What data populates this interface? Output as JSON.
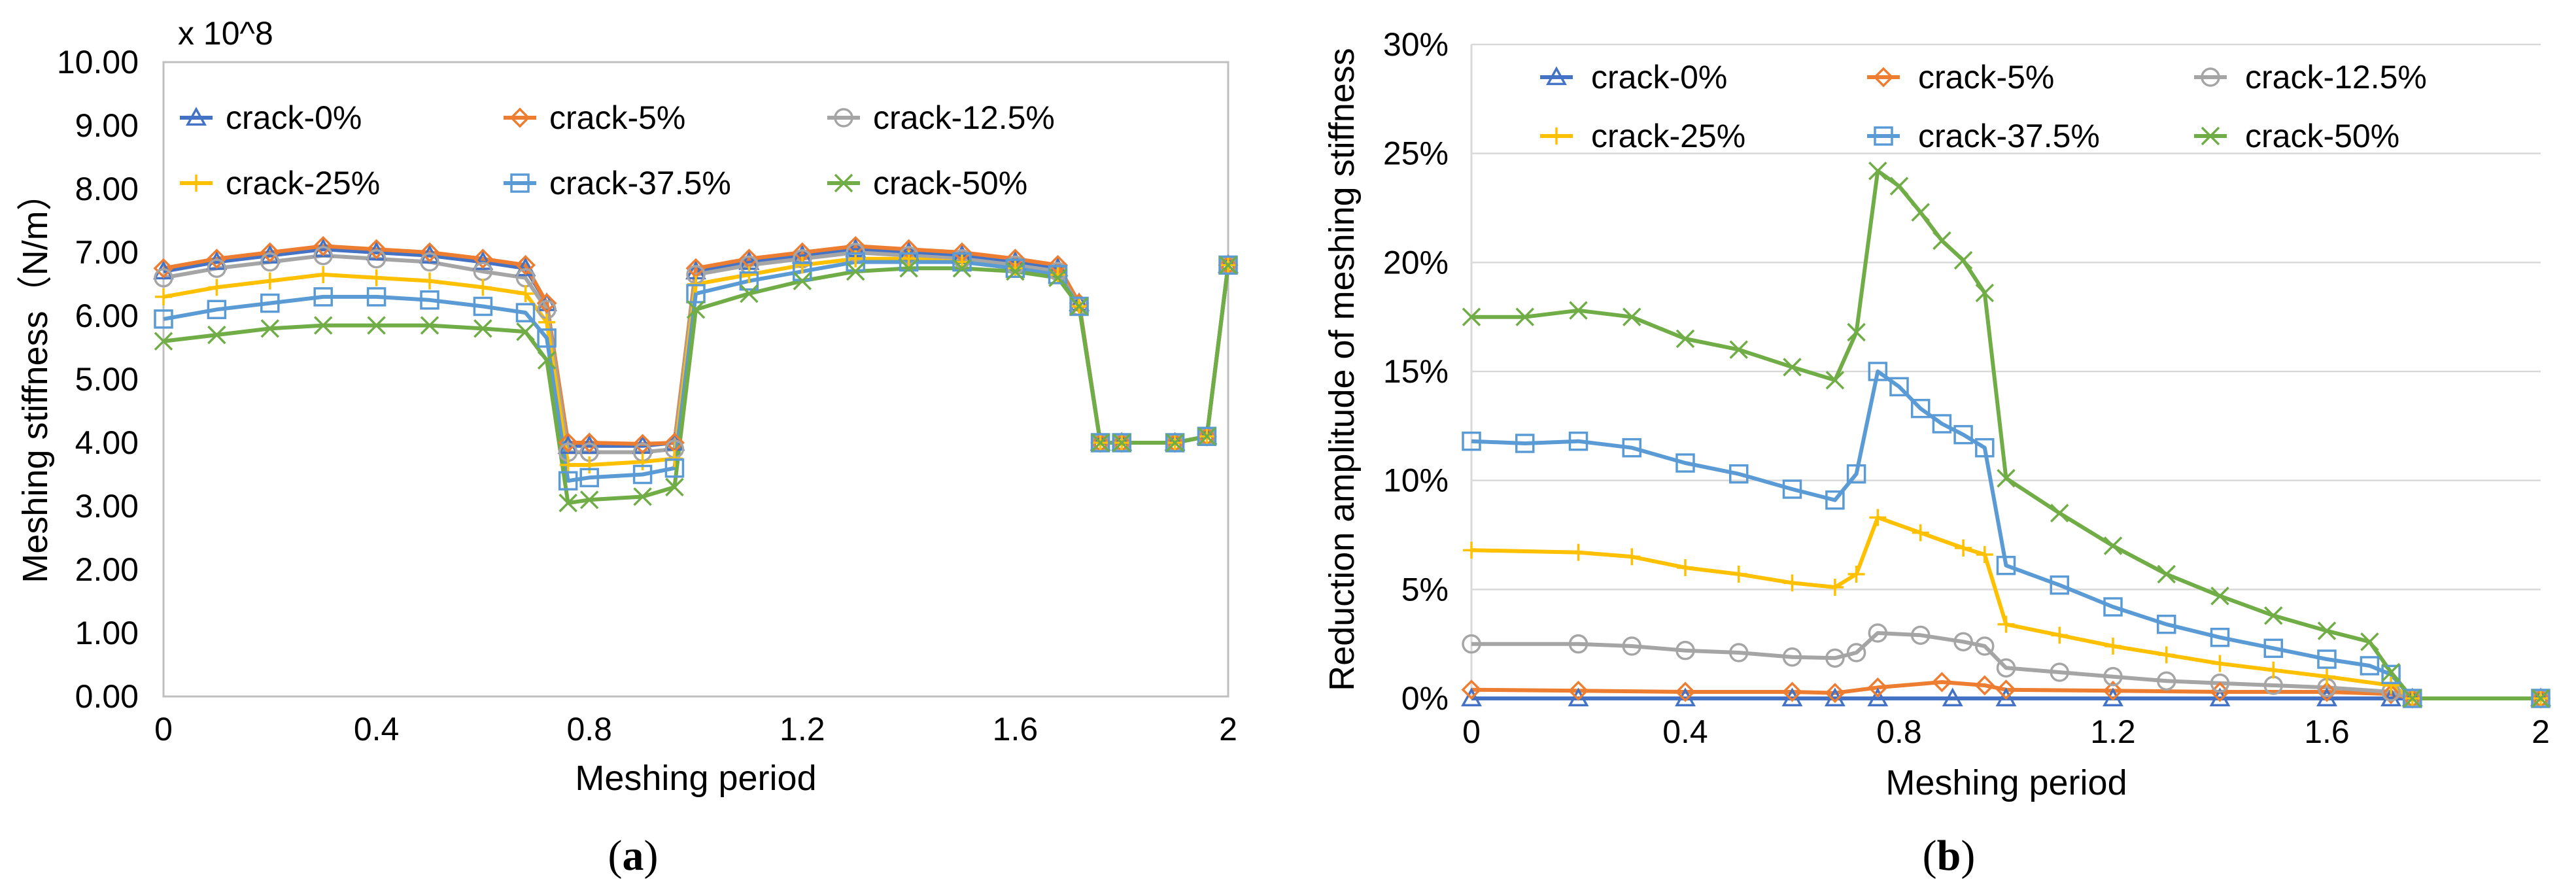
{
  "chart_data": [
    {
      "type": "line",
      "panel_label": "a",
      "multiplier_label": "x 10^8",
      "xlabel": "Meshing period",
      "ylabel": "Meshing stiffness（N/m）",
      "xlim": [
        0,
        2
      ],
      "ylim": [
        0,
        10
      ],
      "x_ticks": [
        0,
        0.4,
        0.8,
        1.2,
        1.6,
        2
      ],
      "x_tick_labels": [
        "0",
        "0.4",
        "0.8",
        "1.2",
        "1.6",
        "2"
      ],
      "y_ticks": [
        0,
        1,
        2,
        3,
        4,
        5,
        6,
        7,
        8,
        9,
        10
      ],
      "y_tick_labels": [
        "0.00",
        "1.00",
        "2.00",
        "3.00",
        "4.00",
        "5.00",
        "6.00",
        "7.00",
        "8.00",
        "9.00",
        "10.00"
      ],
      "legend_position": "top",
      "series": [
        {
          "name": "crack-0%",
          "color": "#4472C4",
          "marker": "triangle",
          "x": [
            0,
            0.1,
            0.2,
            0.3,
            0.4,
            0.5,
            0.6,
            0.68,
            0.72,
            0.76,
            0.8,
            0.9,
            0.96,
            1.0,
            1.1,
            1.2,
            1.3,
            1.4,
            1.5,
            1.6,
            1.68,
            1.72,
            1.76,
            1.8,
            1.9,
            1.96,
            2.0
          ],
          "values": [
            6.7,
            6.85,
            6.95,
            7.05,
            7.0,
            6.95,
            6.85,
            6.75,
            6.2,
            3.95,
            3.95,
            3.95,
            4.0,
            6.7,
            6.85,
            6.95,
            7.05,
            7.0,
            6.95,
            6.85,
            6.75,
            6.2,
            4.0,
            4.0,
            4.0,
            4.1,
            6.8
          ]
        },
        {
          "name": "crack-5%",
          "color": "#ED7D31",
          "marker": "diamond",
          "x": [
            0,
            0.1,
            0.2,
            0.3,
            0.4,
            0.5,
            0.6,
            0.68,
            0.72,
            0.76,
            0.8,
            0.9,
            0.96,
            1.0,
            1.1,
            1.2,
            1.3,
            1.4,
            1.5,
            1.6,
            1.68,
            1.72,
            1.76,
            1.8,
            1.9,
            1.96,
            2.0
          ],
          "values": [
            6.75,
            6.9,
            7.0,
            7.1,
            7.05,
            7.0,
            6.9,
            6.8,
            6.2,
            4.0,
            4.0,
            3.98,
            4.0,
            6.75,
            6.9,
            7.0,
            7.1,
            7.05,
            7.0,
            6.9,
            6.8,
            6.2,
            4.0,
            4.0,
            4.0,
            4.1,
            6.8
          ]
        },
        {
          "name": "crack-12.5%",
          "color": "#A5A5A5",
          "marker": "circle",
          "x": [
            0,
            0.1,
            0.2,
            0.3,
            0.4,
            0.5,
            0.6,
            0.68,
            0.72,
            0.76,
            0.8,
            0.9,
            0.96,
            1.0,
            1.1,
            1.2,
            1.3,
            1.4,
            1.5,
            1.6,
            1.68,
            1.72,
            1.76,
            1.8,
            1.9,
            1.96,
            2.0
          ],
          "values": [
            6.6,
            6.75,
            6.85,
            6.95,
            6.9,
            6.85,
            6.7,
            6.6,
            6.1,
            3.85,
            3.85,
            3.85,
            3.9,
            6.65,
            6.8,
            6.9,
            7.0,
            6.95,
            6.9,
            6.8,
            6.7,
            6.15,
            4.0,
            4.0,
            4.0,
            4.1,
            6.8
          ]
        },
        {
          "name": "crack-25%",
          "color": "#FFC000",
          "marker": "plus",
          "x": [
            0,
            0.1,
            0.2,
            0.3,
            0.4,
            0.5,
            0.6,
            0.68,
            0.72,
            0.76,
            0.8,
            0.9,
            0.96,
            1.0,
            1.1,
            1.2,
            1.3,
            1.4,
            1.5,
            1.6,
            1.68,
            1.72,
            1.76,
            1.8,
            1.9,
            1.96,
            2.0
          ],
          "values": [
            6.3,
            6.45,
            6.55,
            6.65,
            6.6,
            6.55,
            6.45,
            6.35,
            5.9,
            3.65,
            3.65,
            3.7,
            3.75,
            6.5,
            6.65,
            6.8,
            6.9,
            6.9,
            6.85,
            6.75,
            6.65,
            6.15,
            4.0,
            4.0,
            4.0,
            4.1,
            6.8
          ]
        },
        {
          "name": "crack-37.5%",
          "color": "#5B9BD5",
          "marker": "square",
          "x": [
            0,
            0.1,
            0.2,
            0.3,
            0.4,
            0.5,
            0.6,
            0.68,
            0.72,
            0.76,
            0.8,
            0.9,
            0.96,
            1.0,
            1.1,
            1.2,
            1.3,
            1.4,
            1.5,
            1.6,
            1.68,
            1.72,
            1.76,
            1.8,
            1.9,
            1.96,
            2.0
          ],
          "values": [
            5.95,
            6.1,
            6.2,
            6.3,
            6.3,
            6.25,
            6.15,
            6.05,
            5.65,
            3.4,
            3.45,
            3.5,
            3.6,
            6.35,
            6.55,
            6.7,
            6.85,
            6.85,
            6.85,
            6.75,
            6.65,
            6.15,
            4.0,
            4.0,
            4.0,
            4.1,
            6.8
          ]
        },
        {
          "name": "crack-50%",
          "color": "#70AD47",
          "marker": "x",
          "x": [
            0,
            0.1,
            0.2,
            0.3,
            0.4,
            0.5,
            0.6,
            0.68,
            0.72,
            0.76,
            0.8,
            0.9,
            0.96,
            1.0,
            1.1,
            1.2,
            1.3,
            1.4,
            1.5,
            1.6,
            1.68,
            1.72,
            1.76,
            1.8,
            1.9,
            1.96,
            2.0
          ],
          "values": [
            5.6,
            5.7,
            5.8,
            5.85,
            5.85,
            5.85,
            5.8,
            5.75,
            5.3,
            3.05,
            3.1,
            3.15,
            3.3,
            6.1,
            6.35,
            6.55,
            6.7,
            6.75,
            6.75,
            6.7,
            6.6,
            6.15,
            4.0,
            4.0,
            4.0,
            4.1,
            6.8
          ]
        }
      ]
    },
    {
      "type": "line",
      "panel_label": "b",
      "xlabel": "Meshing period",
      "ylabel": "Reduction amplitude of meshing stiffness",
      "xlim": [
        0,
        2
      ],
      "ylim": [
        0,
        30
      ],
      "x_ticks": [
        0,
        0.4,
        0.8,
        1.2,
        1.6,
        2
      ],
      "x_tick_labels": [
        "0",
        "0.4",
        "0.8",
        "1.2",
        "1.6",
        "2"
      ],
      "y_ticks": [
        0,
        5,
        10,
        15,
        20,
        25,
        30
      ],
      "y_tick_labels": [
        "0%",
        "5%",
        "10%",
        "15%",
        "20%",
        "25%",
        "30%"
      ],
      "legend_position": "top",
      "series": [
        {
          "name": "crack-0%",
          "color": "#4472C4",
          "marker": "triangle",
          "x": [
            0,
            0.2,
            0.4,
            0.6,
            0.68,
            0.76,
            0.9,
            1.0,
            1.2,
            1.4,
            1.6,
            1.72,
            1.76,
            2.0
          ],
          "values": [
            0,
            0,
            0,
            0,
            0,
            0,
            0,
            0,
            0,
            0,
            0,
            0,
            0,
            0
          ]
        },
        {
          "name": "crack-5%",
          "color": "#ED7D31",
          "marker": "diamond",
          "x": [
            0,
            0.2,
            0.4,
            0.6,
            0.68,
            0.76,
            0.88,
            0.96,
            1.0,
            1.2,
            1.4,
            1.6,
            1.72,
            1.76,
            2.0
          ],
          "values": [
            0.4,
            0.35,
            0.3,
            0.3,
            0.25,
            0.5,
            0.75,
            0.6,
            0.4,
            0.35,
            0.3,
            0.3,
            0.2,
            0,
            0
          ]
        },
        {
          "name": "crack-12.5%",
          "color": "#A5A5A5",
          "marker": "circle",
          "x": [
            0,
            0.2,
            0.3,
            0.4,
            0.5,
            0.6,
            0.68,
            0.72,
            0.76,
            0.84,
            0.92,
            0.96,
            1.0,
            1.1,
            1.2,
            1.3,
            1.4,
            1.5,
            1.6,
            1.72,
            1.76,
            2.0
          ],
          "values": [
            2.5,
            2.5,
            2.4,
            2.2,
            2.1,
            1.9,
            1.85,
            2.1,
            3.0,
            2.9,
            2.6,
            2.4,
            1.4,
            1.2,
            1.0,
            0.8,
            0.7,
            0.6,
            0.5,
            0.3,
            0,
            0
          ]
        },
        {
          "name": "crack-25%",
          "color": "#FFC000",
          "marker": "plus",
          "x": [
            0,
            0.2,
            0.3,
            0.4,
            0.5,
            0.6,
            0.68,
            0.72,
            0.76,
            0.84,
            0.92,
            0.96,
            1.0,
            1.1,
            1.2,
            1.3,
            1.4,
            1.5,
            1.6,
            1.72,
            1.76,
            2.0
          ],
          "values": [
            6.8,
            6.7,
            6.5,
            6.0,
            5.7,
            5.3,
            5.1,
            5.7,
            8.3,
            7.6,
            6.9,
            6.6,
            3.4,
            2.9,
            2.4,
            2.0,
            1.6,
            1.3,
            1.0,
            0.6,
            0,
            0
          ]
        },
        {
          "name": "crack-37.5%",
          "color": "#5B9BD5",
          "marker": "square",
          "x": [
            0,
            0.1,
            0.2,
            0.3,
            0.4,
            0.5,
            0.6,
            0.68,
            0.72,
            0.76,
            0.8,
            0.84,
            0.88,
            0.92,
            0.96,
            1.0,
            1.1,
            1.2,
            1.3,
            1.4,
            1.5,
            1.6,
            1.68,
            1.72,
            1.76,
            2.0
          ],
          "values": [
            11.8,
            11.7,
            11.8,
            11.5,
            10.8,
            10.3,
            9.6,
            9.1,
            10.3,
            15.0,
            14.3,
            13.3,
            12.6,
            12.1,
            11.5,
            6.1,
            5.2,
            4.2,
            3.4,
            2.8,
            2.3,
            1.8,
            1.5,
            1.1,
            0,
            0
          ]
        },
        {
          "name": "crack-50%",
          "color": "#70AD47",
          "marker": "x",
          "x": [
            0,
            0.1,
            0.2,
            0.3,
            0.4,
            0.5,
            0.6,
            0.68,
            0.72,
            0.76,
            0.8,
            0.84,
            0.88,
            0.92,
            0.96,
            1.0,
            1.1,
            1.2,
            1.3,
            1.4,
            1.5,
            1.6,
            1.68,
            1.72,
            1.76,
            2.0
          ],
          "values": [
            17.5,
            17.5,
            17.8,
            17.5,
            16.5,
            16.0,
            15.2,
            14.6,
            16.8,
            24.2,
            23.5,
            22.3,
            21.0,
            20.1,
            18.6,
            10.1,
            8.5,
            7.0,
            5.7,
            4.7,
            3.8,
            3.1,
            2.6,
            1.2,
            0,
            0
          ]
        }
      ]
    }
  ]
}
